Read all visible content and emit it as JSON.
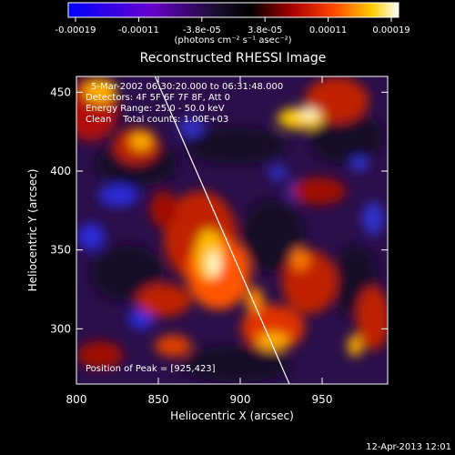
{
  "chart_data": {
    "type": "heatmap",
    "title": "Reconstructed RHESSI Image",
    "xlabel": "Heliocentric X (arcsec)",
    "ylabel": "Heliocentric Y (arcsec)",
    "xlim": [
      800,
      990
    ],
    "ylim": [
      265,
      460
    ],
    "x_ticks": [
      800,
      850,
      900,
      950
    ],
    "y_ticks": [
      300,
      350,
      400,
      450
    ],
    "annotations": [
      "5-Mar-2002 06:30:20.000 to 06:31:48.000",
      "Detectors: 4F 5F 6F 7F 8F, Att 0",
      "Energy Range: 25.0 - 50.0 keV",
      "Clean    Total counts: 1.00E+03"
    ],
    "peak_label": "Position of Peak = [925,423]",
    "peak_position": [
      925,
      423
    ],
    "colorbar": {
      "ticks": [
        "-0.00019",
        "-0.00011",
        "-3.8e-05",
        "3.8e-05",
        "0.00011",
        "0.00019"
      ],
      "range": [
        -0.00019,
        0.00019
      ],
      "unit_label": "(photons cm⁻² s⁻¹ asec⁻²)",
      "colors": [
        "#0000ff",
        "#6600cc",
        "#1a0d2e",
        "#000000",
        "#aa0000",
        "#ff4400",
        "#ffcc00",
        "#ffffff"
      ]
    },
    "limb_line": {
      "x": [
        848,
        930
      ],
      "y": [
        460,
        265
      ]
    },
    "grid": false,
    "timestamp": "12-Apr-2013 12:01"
  }
}
